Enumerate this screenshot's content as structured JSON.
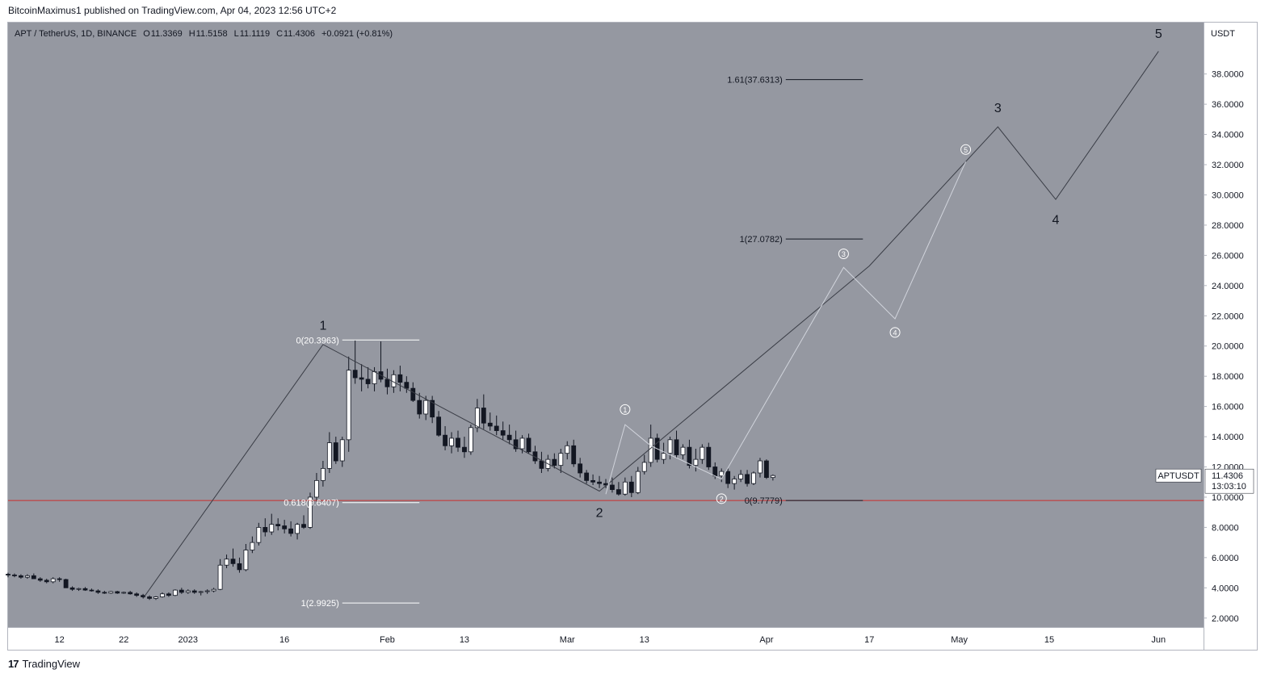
{
  "header": {
    "published": "BitcoinMaximus1 published on TradingView.com, Apr 04, 2023 12:56 UTC+2"
  },
  "footer": {
    "logo_glyph": "17",
    "brand": "TradingView"
  },
  "colors": {
    "plot_bg": "#9598a1",
    "price_axis_bg": "#ffffff",
    "candle_up_fill": "#ffffff",
    "candle_down_fill": "#131722",
    "wave_dark": "#3a3d46",
    "wave_light": "#d1d4dc",
    "support_line": "#cc2e2e",
    "fib_white": "#ffffff",
    "fib_black": "#131722"
  },
  "chart_data": {
    "type": "candlestick",
    "symbol_info": {
      "symbol": "APT / TetherUS, 1D, BINANCE",
      "o_label": "O",
      "open": "11.3369",
      "h_label": "H",
      "high": "11.5158",
      "l_label": "L",
      "low": "11.1119",
      "c_label": "C",
      "close": "11.4306",
      "change": "+0.0921 (+0.81%)"
    },
    "y_axis": {
      "unit": "USDT",
      "ylim": [
        1.4,
        41.4
      ],
      "ticks": [
        "38.0000",
        "36.0000",
        "34.0000",
        "32.0000",
        "30.0000",
        "28.0000",
        "26.0000",
        "24.0000",
        "22.0000",
        "20.0000",
        "18.0000",
        "16.0000",
        "14.0000",
        "12.0000",
        "10.0000",
        "8.0000",
        "6.0000",
        "4.0000",
        "2.0000"
      ]
    },
    "x_axis": {
      "comment": "x in days since 2022-12-04",
      "xlim": [
        0,
        186
      ],
      "ticks": [
        {
          "x": 8,
          "label": "12"
        },
        {
          "x": 18,
          "label": "22"
        },
        {
          "x": 28,
          "label": "2023"
        },
        {
          "x": 43,
          "label": "16"
        },
        {
          "x": 59,
          "label": "Feb"
        },
        {
          "x": 71,
          "label": "13"
        },
        {
          "x": 87,
          "label": "Mar"
        },
        {
          "x": 99,
          "label": "13"
        },
        {
          "x": 118,
          "label": "Apr"
        },
        {
          "x": 134,
          "label": "17"
        },
        {
          "x": 148,
          "label": "May"
        },
        {
          "x": 162,
          "label": "15"
        },
        {
          "x": 179,
          "label": "Jun"
        }
      ]
    },
    "price_label": {
      "symbol": "APTUSDT",
      "price": "11.4306",
      "countdown": "13:03:10",
      "value": 11.4306
    },
    "ohlc_start_x": 0,
    "ohlc": [
      [
        4.9,
        5.0,
        4.7,
        4.85
      ],
      [
        4.85,
        4.95,
        4.7,
        4.8
      ],
      [
        4.8,
        4.9,
        4.6,
        4.7
      ],
      [
        4.7,
        4.9,
        4.6,
        4.8
      ],
      [
        4.8,
        4.95,
        4.6,
        4.6
      ],
      [
        4.6,
        4.7,
        4.4,
        4.5
      ],
      [
        4.5,
        4.6,
        4.3,
        4.4
      ],
      [
        4.4,
        4.7,
        4.3,
        4.6
      ],
      [
        4.6,
        4.7,
        4.4,
        4.55
      ],
      [
        4.55,
        4.6,
        4.0,
        4.0
      ],
      [
        4.0,
        4.1,
        3.8,
        3.9
      ],
      [
        3.9,
        4.0,
        3.8,
        3.95
      ],
      [
        3.95,
        4.05,
        3.8,
        3.85
      ],
      [
        3.85,
        3.95,
        3.75,
        3.8
      ],
      [
        3.8,
        3.9,
        3.6,
        3.7
      ],
      [
        3.7,
        3.8,
        3.6,
        3.65
      ],
      [
        3.65,
        3.8,
        3.6,
        3.75
      ],
      [
        3.75,
        3.8,
        3.6,
        3.65
      ],
      [
        3.65,
        3.75,
        3.6,
        3.7
      ],
      [
        3.7,
        3.8,
        3.55,
        3.6
      ],
      [
        3.6,
        3.7,
        3.4,
        3.5
      ],
      [
        3.5,
        3.6,
        3.3,
        3.4
      ],
      [
        3.4,
        3.5,
        3.2,
        3.3
      ],
      [
        3.3,
        3.45,
        3.2,
        3.4
      ],
      [
        3.4,
        3.7,
        3.35,
        3.6
      ],
      [
        3.6,
        3.7,
        3.4,
        3.5
      ],
      [
        3.5,
        3.9,
        3.45,
        3.85
      ],
      [
        3.85,
        4.0,
        3.6,
        3.7
      ],
      [
        3.7,
        3.9,
        3.6,
        3.8
      ],
      [
        3.8,
        3.9,
        3.6,
        3.7
      ],
      [
        3.7,
        3.8,
        3.5,
        3.75
      ],
      [
        3.75,
        3.9,
        3.6,
        3.8
      ],
      [
        3.8,
        4.0,
        3.7,
        3.9
      ],
      [
        3.9,
        5.9,
        3.85,
        5.5
      ],
      [
        5.5,
        6.2,
        5.3,
        5.9
      ],
      [
        5.9,
        6.6,
        5.4,
        5.6
      ],
      [
        5.6,
        6.0,
        5.0,
        5.2
      ],
      [
        5.2,
        6.9,
        5.1,
        6.5
      ],
      [
        6.5,
        7.4,
        6.3,
        7.0
      ],
      [
        7.0,
        8.3,
        6.8,
        8.0
      ],
      [
        8.0,
        8.6,
        7.4,
        7.7
      ],
      [
        7.7,
        8.9,
        7.5,
        8.2
      ],
      [
        8.2,
        8.6,
        7.8,
        8.1
      ],
      [
        8.1,
        8.5,
        7.6,
        7.9
      ],
      [
        7.9,
        8.4,
        7.4,
        7.6
      ],
      [
        7.6,
        8.3,
        7.2,
        8.2
      ],
      [
        8.2,
        8.8,
        7.9,
        8.0
      ],
      [
        8.0,
        10.3,
        7.9,
        10.0
      ],
      [
        10.0,
        11.6,
        9.7,
        11.1
      ],
      [
        11.1,
        12.4,
        10.7,
        11.9
      ],
      [
        11.9,
        14.3,
        11.6,
        13.6
      ],
      [
        13.6,
        14.0,
        12.2,
        12.4
      ],
      [
        12.4,
        14.0,
        12.0,
        13.8
      ],
      [
        13.8,
        19.3,
        13.0,
        18.4
      ],
      [
        18.4,
        20.4,
        17.5,
        17.9
      ],
      [
        17.9,
        18.8,
        17.0,
        17.8
      ],
      [
        17.8,
        18.6,
        17.2,
        17.5
      ],
      [
        17.5,
        18.6,
        17.0,
        18.3
      ],
      [
        18.3,
        20.3,
        17.6,
        17.8
      ],
      [
        17.8,
        18.5,
        16.8,
        17.3
      ],
      [
        17.3,
        18.4,
        16.9,
        18.1
      ],
      [
        18.1,
        18.7,
        17.0,
        17.6
      ],
      [
        17.6,
        18.0,
        16.9,
        17.2
      ],
      [
        17.2,
        17.6,
        16.3,
        16.4
      ],
      [
        16.4,
        16.9,
        15.2,
        15.5
      ],
      [
        15.5,
        16.7,
        15.1,
        16.4
      ],
      [
        16.4,
        16.7,
        14.9,
        15.3
      ],
      [
        15.3,
        15.7,
        14.0,
        14.1
      ],
      [
        14.1,
        14.7,
        13.1,
        13.4
      ],
      [
        13.4,
        14.3,
        12.9,
        13.9
      ],
      [
        13.9,
        14.4,
        13.0,
        13.3
      ],
      [
        13.3,
        14.0,
        12.6,
        13.0
      ],
      [
        13.0,
        14.8,
        12.8,
        14.6
      ],
      [
        14.6,
        16.5,
        14.3,
        15.9
      ],
      [
        15.9,
        16.8,
        14.5,
        14.9
      ],
      [
        14.9,
        15.6,
        14.4,
        14.7
      ],
      [
        14.7,
        15.4,
        14.1,
        14.4
      ],
      [
        14.4,
        15.0,
        13.8,
        14.1
      ],
      [
        14.1,
        14.8,
        13.5,
        13.8
      ],
      [
        13.8,
        14.4,
        13.0,
        13.2
      ],
      [
        13.2,
        14.1,
        12.9,
        13.9
      ],
      [
        13.9,
        14.2,
        12.9,
        13.0
      ],
      [
        13.0,
        13.4,
        12.2,
        12.4
      ],
      [
        12.4,
        13.0,
        11.6,
        11.9
      ],
      [
        11.9,
        12.8,
        11.7,
        12.5
      ],
      [
        12.5,
        12.9,
        11.9,
        12.1
      ],
      [
        12.1,
        13.2,
        11.6,
        12.9
      ],
      [
        12.9,
        13.7,
        12.5,
        13.4
      ],
      [
        13.4,
        13.8,
        12.0,
        12.2
      ],
      [
        12.2,
        12.6,
        11.3,
        11.6
      ],
      [
        11.6,
        11.8,
        10.9,
        11.1
      ],
      [
        11.1,
        11.5,
        10.8,
        11.0
      ],
      [
        11.0,
        11.4,
        10.6,
        10.9
      ],
      [
        10.9,
        11.2,
        10.6,
        10.8
      ],
      [
        10.8,
        11.3,
        10.3,
        10.5
      ],
      [
        10.5,
        11.0,
        10.1,
        10.2
      ],
      [
        10.2,
        11.3,
        10.1,
        11.0
      ],
      [
        11.0,
        11.4,
        10.0,
        10.3
      ],
      [
        10.3,
        12.0,
        10.2,
        11.7
      ],
      [
        11.7,
        12.8,
        11.5,
        12.3
      ],
      [
        12.3,
        14.8,
        12.0,
        13.9
      ],
      [
        13.9,
        14.2,
        12.3,
        12.5
      ],
      [
        12.5,
        13.6,
        12.2,
        12.9
      ],
      [
        12.9,
        14.0,
        12.5,
        13.8
      ],
      [
        13.8,
        14.4,
        12.6,
        12.8
      ],
      [
        12.8,
        13.5,
        12.5,
        13.3
      ],
      [
        13.3,
        13.8,
        11.9,
        12.1
      ],
      [
        12.1,
        13.2,
        11.7,
        12.5
      ],
      [
        12.5,
        13.5,
        12.2,
        13.3
      ],
      [
        13.3,
        13.6,
        11.8,
        12.0
      ],
      [
        12.0,
        12.3,
        11.2,
        11.4
      ],
      [
        11.4,
        11.9,
        11.0,
        11.7
      ],
      [
        11.7,
        11.9,
        10.6,
        10.9
      ],
      [
        10.9,
        11.4,
        10.5,
        11.2
      ],
      [
        11.2,
        11.8,
        11.0,
        11.5
      ],
      [
        11.5,
        11.8,
        10.7,
        10.9
      ],
      [
        10.9,
        11.7,
        10.8,
        11.6
      ],
      [
        11.6,
        12.6,
        11.3,
        12.4
      ],
      [
        12.4,
        12.5,
        11.2,
        11.3
      ],
      [
        11.3,
        11.5,
        11.1,
        11.4306
      ]
    ],
    "support_line": {
      "y": 9.7779
    },
    "fib_sets": [
      {
        "color": "white",
        "x_start": 52,
        "x_end": 64,
        "label_align": "right",
        "levels": [
          {
            "label": "0(20.3963)",
            "value": 20.3963
          },
          {
            "label": "0.618(9.6407)",
            "value": 9.6407
          },
          {
            "label": "1(2.9925)",
            "value": 2.9925
          }
        ]
      },
      {
        "color": "black",
        "x_start": 121,
        "x_end": 133,
        "label_align": "right",
        "levels": [
          {
            "label": "1.61(37.6313)",
            "value": 37.6313
          },
          {
            "label": "1(27.0782)",
            "value": 27.0782
          },
          {
            "label": "0(9.7779)",
            "value": 9.7779
          }
        ]
      }
    ],
    "primary_wave": {
      "points": [
        [
          21,
          3.3
        ],
        [
          49,
          20.1
        ],
        [
          92,
          10.4
        ],
        [
          134,
          25.3
        ],
        [
          154,
          34.5
        ],
        [
          163,
          29.7
        ],
        [
          179,
          39.5
        ]
      ],
      "labels": [
        {
          "text": "1",
          "x": 49,
          "y": 21.4
        },
        {
          "text": "2",
          "x": 92,
          "y": 9.0
        },
        {
          "text": "3",
          "x": 154,
          "y": 35.8
        },
        {
          "text": "4",
          "x": 163,
          "y": 28.4
        },
        {
          "text": "5",
          "x": 179,
          "y": 40.7
        }
      ]
    },
    "secondary_wave": {
      "points": [
        [
          93,
          10.2
        ],
        [
          96,
          14.8
        ],
        [
          100,
          13.4
        ],
        [
          111,
          11.2
        ],
        [
          130,
          25.2
        ],
        [
          138,
          21.8
        ],
        [
          149,
          32.2
        ]
      ],
      "labels": [
        {
          "text": "1",
          "x": 96,
          "y": 15.8
        },
        {
          "text": "2",
          "x": 111,
          "y": 9.9
        },
        {
          "text": "3",
          "x": 130,
          "y": 26.1
        },
        {
          "text": "4",
          "x": 138,
          "y": 20.9
        },
        {
          "text": "5",
          "x": 149,
          "y": 33.0
        }
      ]
    }
  }
}
